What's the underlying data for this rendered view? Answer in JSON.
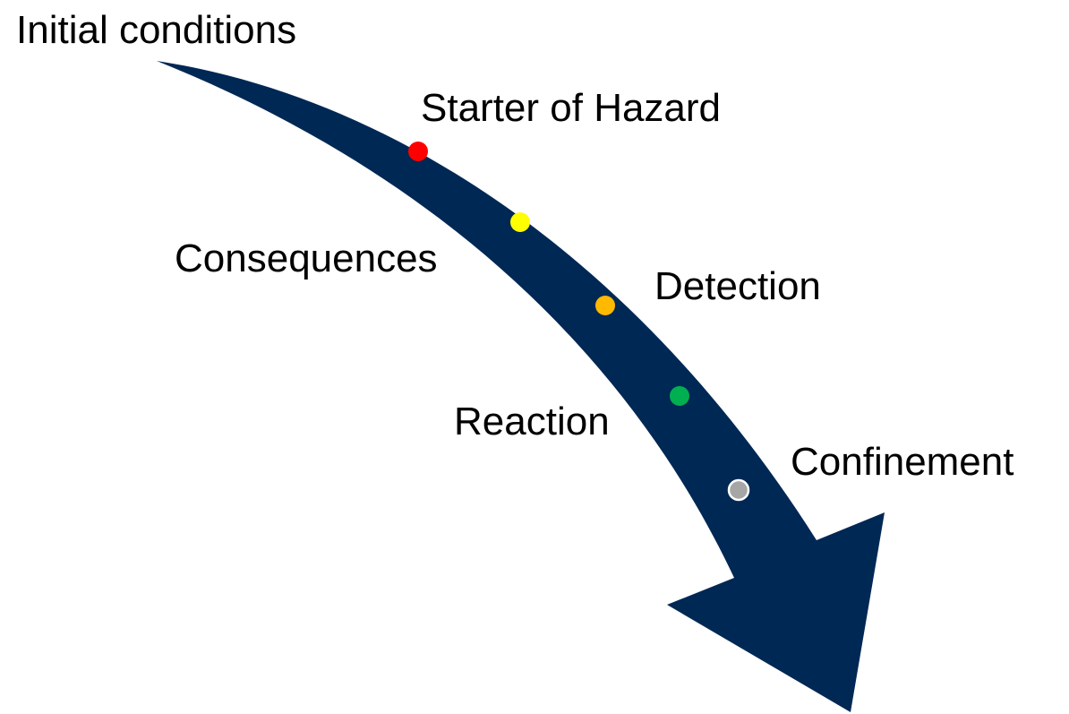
{
  "title": "Initial conditions",
  "nodes": [
    {
      "label": "Starter of Hazard",
      "color": "#ff0000"
    },
    {
      "label": "Consequences",
      "color": "#ffff00"
    },
    {
      "label": "Detection",
      "color": "#ffb900"
    },
    {
      "label": "Reaction",
      "color": "#00b050"
    },
    {
      "label": "Confinement",
      "color": "#a6a6a6"
    }
  ]
}
